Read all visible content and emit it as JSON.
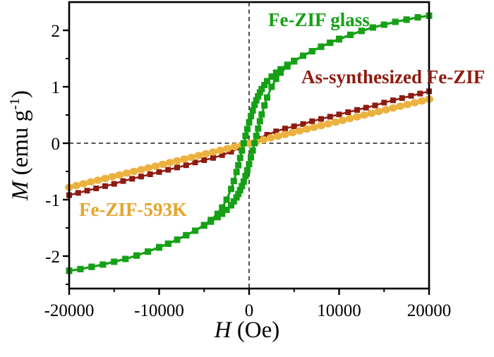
{
  "chart_data": {
    "type": "line",
    "title": "",
    "xlabel_symbol": "H",
    "xlabel_unit": " (Oe)",
    "ylabel_symbol": "M",
    "ylabel_unit_pre": " (emu g",
    "ylabel_sup": "-1",
    "ylabel_unit_post": ")",
    "xlim": [
      -20000,
      20000
    ],
    "ylim": [
      -2.58,
      2.5
    ],
    "grid": false,
    "axes": {
      "x": {
        "major_ticks": [
          -20000,
          -10000,
          0,
          10000,
          20000
        ],
        "minor_ticks": [
          -15000,
          -5000,
          5000,
          15000
        ],
        "tick_labels": [
          "-20000",
          "-10000",
          "0",
          "10000",
          "20000"
        ]
      },
      "y": {
        "major_ticks": [
          -2,
          -1,
          0,
          1,
          2
        ],
        "minor_ticks": [
          -2.5,
          -1.5,
          -0.5,
          0.5,
          1.5
        ],
        "tick_labels": [
          "-2",
          "-1",
          "0",
          "1",
          "2"
        ]
      }
    },
    "zero_lines": {
      "color": "#3d3d3d",
      "dash": "6 4.5",
      "width": 1.8
    },
    "frame_color": "#000000",
    "series": [
      {
        "name": "As-synthesized Fe-ZIF",
        "color": "#8e1b10",
        "marker": "square",
        "marker_size": 8,
        "line_width": 2.5,
        "branches": [
          {
            "H": [
              -20000,
              -19000,
              -18000,
              -17000,
              -16000,
              -15000,
              -14000,
              -13000,
              -12000,
              -11000,
              -10000,
              -9000,
              -8000,
              -7000,
              -6000,
              -5000,
              -4000,
              -3000,
              -2000,
              -1000,
              0,
              1000,
              2000,
              3000,
              4000,
              5000,
              6000,
              7000,
              8000,
              9000,
              10000,
              11000,
              12000,
              13000,
              14000,
              15000,
              16000,
              17000,
              18000,
              19000,
              20000
            ],
            "M": [
              -0.92,
              -0.88,
              -0.84,
              -0.8,
              -0.76,
              -0.72,
              -0.67,
              -0.63,
              -0.59,
              -0.55,
              -0.51,
              -0.47,
              -0.43,
              -0.39,
              -0.34,
              -0.3,
              -0.26,
              -0.21,
              -0.15,
              -0.08,
              0,
              0.08,
              0.15,
              0.21,
              0.26,
              0.3,
              0.34,
              0.39,
              0.43,
              0.47,
              0.51,
              0.55,
              0.59,
              0.63,
              0.67,
              0.72,
              0.76,
              0.8,
              0.84,
              0.88,
              0.92
            ]
          }
        ]
      },
      {
        "name": "Fe-ZIF-593K",
        "color": "#ecb23f",
        "marker": "circle",
        "marker_size": 11,
        "line_width": 2.5,
        "branches": [
          {
            "H": [
              -20000,
              -19200,
              -18400,
              -17600,
              -16800,
              -16000,
              -15200,
              -14400,
              -13600,
              -12800,
              -12000,
              -11200,
              -10400,
              -9600,
              -8800,
              -8000,
              -7200,
              -6400,
              -5600,
              -4800,
              -4000,
              -3200,
              -2400,
              -1600,
              -800,
              0,
              800,
              1600,
              2400,
              3200,
              4000,
              4800,
              5600,
              6400,
              7200,
              8000,
              8800,
              9600,
              10400,
              11200,
              12000,
              12800,
              13600,
              14400,
              15200,
              16000,
              16800,
              17600,
              18400,
              19200,
              20000
            ],
            "M": [
              -0.78,
              -0.749,
              -0.718,
              -0.686,
              -0.655,
              -0.624,
              -0.593,
              -0.562,
              -0.53,
              -0.499,
              -0.468,
              -0.437,
              -0.406,
              -0.374,
              -0.343,
              -0.312,
              -0.281,
              -0.25,
              -0.218,
              -0.187,
              -0.156,
              -0.125,
              -0.094,
              -0.062,
              -0.031,
              0,
              0.031,
              0.062,
              0.094,
              0.125,
              0.156,
              0.187,
              0.218,
              0.25,
              0.281,
              0.312,
              0.343,
              0.374,
              0.406,
              0.437,
              0.468,
              0.499,
              0.53,
              0.562,
              0.593,
              0.624,
              0.655,
              0.686,
              0.718,
              0.749,
              0.78
            ]
          }
        ]
      },
      {
        "name": "Fe-ZIF glass",
        "color": "#16a016",
        "marker": "square",
        "marker_size": 9,
        "line_width": 3,
        "branches": [
          {
            "H": [
              -20000,
              -18750,
              -17500,
              -16250,
              -15000,
              -13750,
              -12500,
              -11250,
              -10000,
              -9000,
              -8000,
              -7000,
              -6000,
              -5000,
              -4250,
              -3500,
              -3000,
              -2500,
              -2000,
              -1700,
              -1400,
              -1200,
              -1000,
              -800,
              -600,
              -400,
              -200,
              0,
              200,
              400,
              600,
              800,
              1000,
              1200,
              1400,
              1700,
              2000,
              2500,
              3000,
              3500,
              4250,
              5000,
              6000,
              7000,
              8000,
              9000,
              10000,
              11250,
              12500,
              13750,
              15000,
              16250,
              17500,
              18750,
              20000
            ],
            "M": [
              -2.26,
              -2.23,
              -2.19,
              -2.15,
              -2.1,
              -2.05,
              -1.99,
              -1.92,
              -1.84,
              -1.78,
              -1.71,
              -1.63,
              -1.55,
              -1.45,
              -1.36,
              -1.25,
              -1.14,
              -1.0,
              -0.81,
              -0.67,
              -0.51,
              -0.39,
              -0.26,
              -0.13,
              0.0,
              0.13,
              0.25,
              0.37,
              0.48,
              0.58,
              0.68,
              0.76,
              0.83,
              0.9,
              0.96,
              1.03,
              1.1,
              1.18,
              1.25,
              1.31,
              1.39,
              1.46,
              1.55,
              1.63,
              1.71,
              1.78,
              1.85,
              1.92,
              1.99,
              2.05,
              2.1,
              2.15,
              2.19,
              2.23,
              2.26
            ]
          },
          {
            "H": [
              -20000,
              -18750,
              -17500,
              -16250,
              -15000,
              -13750,
              -12500,
              -11250,
              -10000,
              -9000,
              -8000,
              -7000,
              -6000,
              -5000,
              -4250,
              -3500,
              -3000,
              -2500,
              -2000,
              -1700,
              -1400,
              -1200,
              -1000,
              -800,
              -600,
              -400,
              -200,
              0,
              200,
              400,
              600,
              800,
              1000,
              1200,
              1400,
              1700,
              2000,
              2500,
              3000,
              3500,
              4250,
              5000,
              6000,
              7000,
              8000,
              9000,
              10000,
              11250,
              12500,
              13750,
              15000,
              16250,
              17500,
              18750,
              20000
            ],
            "M": [
              -2.26,
              -2.23,
              -2.19,
              -2.15,
              -2.1,
              -2.05,
              -1.99,
              -1.92,
              -1.85,
              -1.78,
              -1.71,
              -1.63,
              -1.55,
              -1.46,
              -1.39,
              -1.31,
              -1.25,
              -1.18,
              -1.1,
              -1.03,
              -0.96,
              -0.9,
              -0.83,
              -0.76,
              -0.68,
              -0.58,
              -0.48,
              -0.37,
              -0.25,
              -0.13,
              0.0,
              0.13,
              0.26,
              0.39,
              0.51,
              0.67,
              0.81,
              1.0,
              1.14,
              1.25,
              1.36,
              1.45,
              1.55,
              1.63,
              1.71,
              1.78,
              1.84,
              1.92,
              1.99,
              2.05,
              2.1,
              2.15,
              2.19,
              2.23,
              2.26
            ]
          }
        ]
      }
    ],
    "annotations": [
      {
        "text": "Fe-ZIF glass",
        "color": "#16a016",
        "x": 380,
        "y": 14
      },
      {
        "text": "As-synthesized Fe-ZIF",
        "color": "#8e1b10",
        "x": 427,
        "y": 95
      },
      {
        "text": "Fe-ZIF-593K",
        "color": "#e4a52e",
        "x": 112,
        "y": 283
      }
    ]
  }
}
